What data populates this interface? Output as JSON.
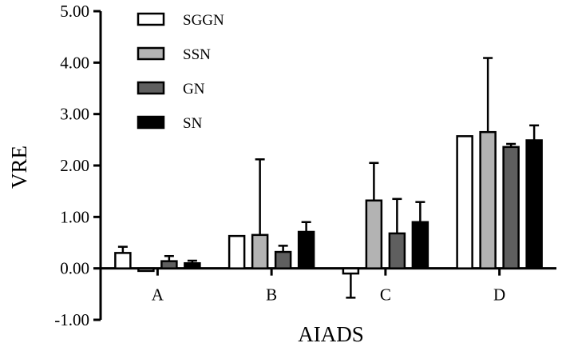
{
  "chart_data": {
    "type": "bar",
    "categories": [
      "A",
      "B",
      "C",
      "D"
    ],
    "xlabel": "AIADS",
    "ylabel": "VRE",
    "ylim": [
      -1.0,
      5.0
    ],
    "yticks": [
      -1.0,
      0.0,
      1.0,
      2.0,
      3.0,
      4.0,
      5.0
    ],
    "ytick_labels": [
      "-1.00",
      "0.00",
      "1.00",
      "2.00",
      "3.00",
      "4.00",
      "5.00"
    ],
    "grid": false,
    "legend_position": "top-left",
    "error_bars": "one-sided (extending away from zero)",
    "series": [
      {
        "name": "SGGN",
        "color": "#ffffff",
        "values": [
          0.3,
          0.63,
          -0.1,
          2.57
        ],
        "errors": [
          0.12,
          0.0,
          0.47,
          0.0
        ]
      },
      {
        "name": "SSN",
        "color": "#b3b3b3",
        "values": [
          -0.05,
          0.65,
          1.32,
          2.65
        ],
        "errors": [
          0.0,
          1.47,
          0.73,
          1.44
        ]
      },
      {
        "name": "GN",
        "color": "#5f5f5f",
        "values": [
          0.14,
          0.32,
          0.68,
          2.36
        ],
        "errors": [
          0.1,
          0.12,
          0.67,
          0.06
        ]
      },
      {
        "name": "SN",
        "color": "#000000",
        "values": [
          0.1,
          0.71,
          0.9,
          2.49
        ],
        "errors": [
          0.05,
          0.19,
          0.39,
          0.29
        ]
      }
    ]
  }
}
